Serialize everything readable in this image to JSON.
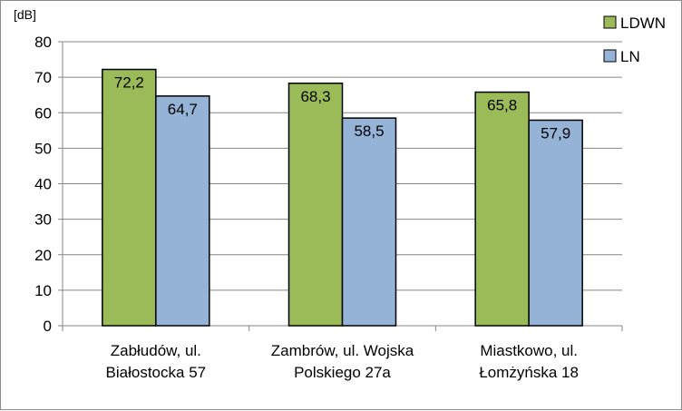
{
  "chart_data": {
    "type": "bar",
    "unit_label": "[dB]",
    "categories": [
      [
        "Zabłudów, ul.",
        "Białostocka 57"
      ],
      [
        "Zambrów, ul. Wojska",
        "Polskiego 27a"
      ],
      [
        "Miastkowo, ul.",
        "Łomżyńska 18"
      ]
    ],
    "series": [
      {
        "name": "LDWN",
        "values": [
          72.2,
          68.3,
          65.8
        ],
        "labels": [
          "72,2",
          "68,3",
          "65,8"
        ],
        "color": "#9bbb59"
      },
      {
        "name": "LN",
        "values": [
          64.7,
          58.5,
          57.9
        ],
        "labels": [
          "64,7",
          "58,5",
          "57,9"
        ],
        "color": "#95b3d7"
      }
    ],
    "ylim": [
      0,
      80
    ],
    "yticks": [
      0,
      10,
      20,
      30,
      40,
      50,
      60,
      70,
      80
    ],
    "grid": true,
    "legend_position": "top-right"
  }
}
